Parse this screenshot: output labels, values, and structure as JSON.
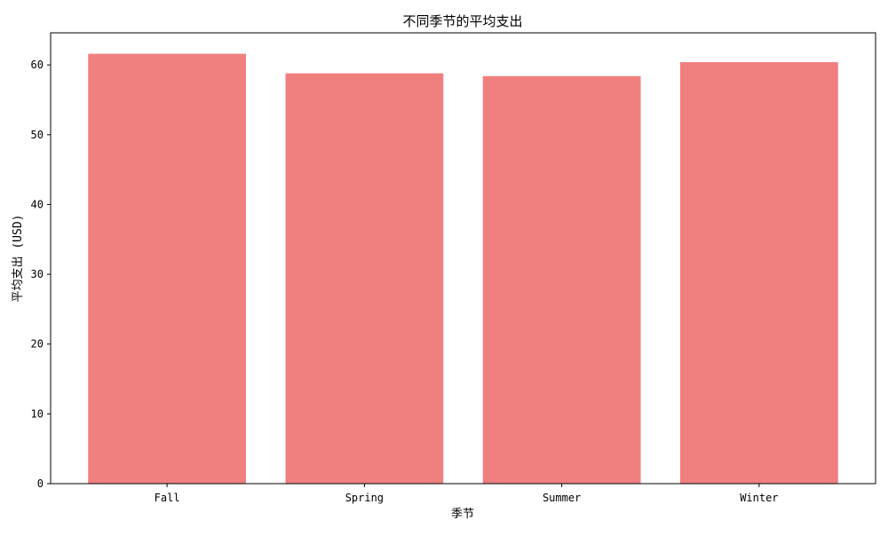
{
  "chart_data": {
    "type": "bar",
    "title": "不同季节的平均支出",
    "xlabel": "季节",
    "ylabel": "平均支出 (USD)",
    "categories": [
      "Fall",
      "Spring",
      "Summer",
      "Winter"
    ],
    "values": [
      61.6,
      58.8,
      58.4,
      60.4
    ],
    "ylim": [
      0,
      64.6
    ],
    "yticks": [
      0,
      10,
      20,
      30,
      40,
      50,
      60
    ],
    "ytick_labels": [
      "0",
      "10",
      "20",
      "30",
      "40",
      "50",
      "60"
    ],
    "bar_color": "#f08080",
    "grid": false,
    "legend": "none"
  }
}
